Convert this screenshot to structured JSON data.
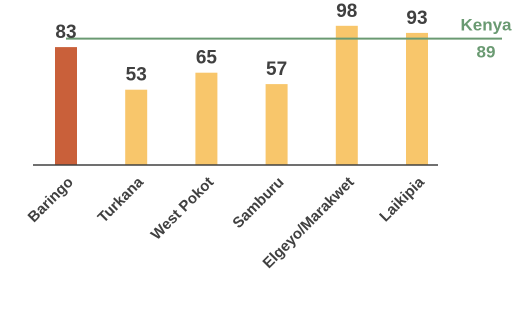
{
  "chart_data": {
    "type": "bar",
    "categories": [
      "Baringo",
      "Turkana",
      "West Pokot",
      "Samburu",
      "Elgeyo/Marakwet",
      "Laikipia"
    ],
    "values": [
      83,
      53,
      65,
      57,
      98,
      93
    ],
    "value_labels": [
      "83",
      "53",
      "65",
      "57",
      "98",
      "93"
    ],
    "ylim": [
      0,
      100
    ],
    "grid": false,
    "legend": "none",
    "highlight_category": "Baringo",
    "reference_line": {
      "label": "Kenya",
      "value": 89,
      "value_label": "89"
    },
    "colors": {
      "bar": "#F8C66B",
      "highlight_bar": "#C9603A",
      "reference_line": "#6A9A72",
      "axis": "#404040",
      "text": "#404040"
    }
  }
}
